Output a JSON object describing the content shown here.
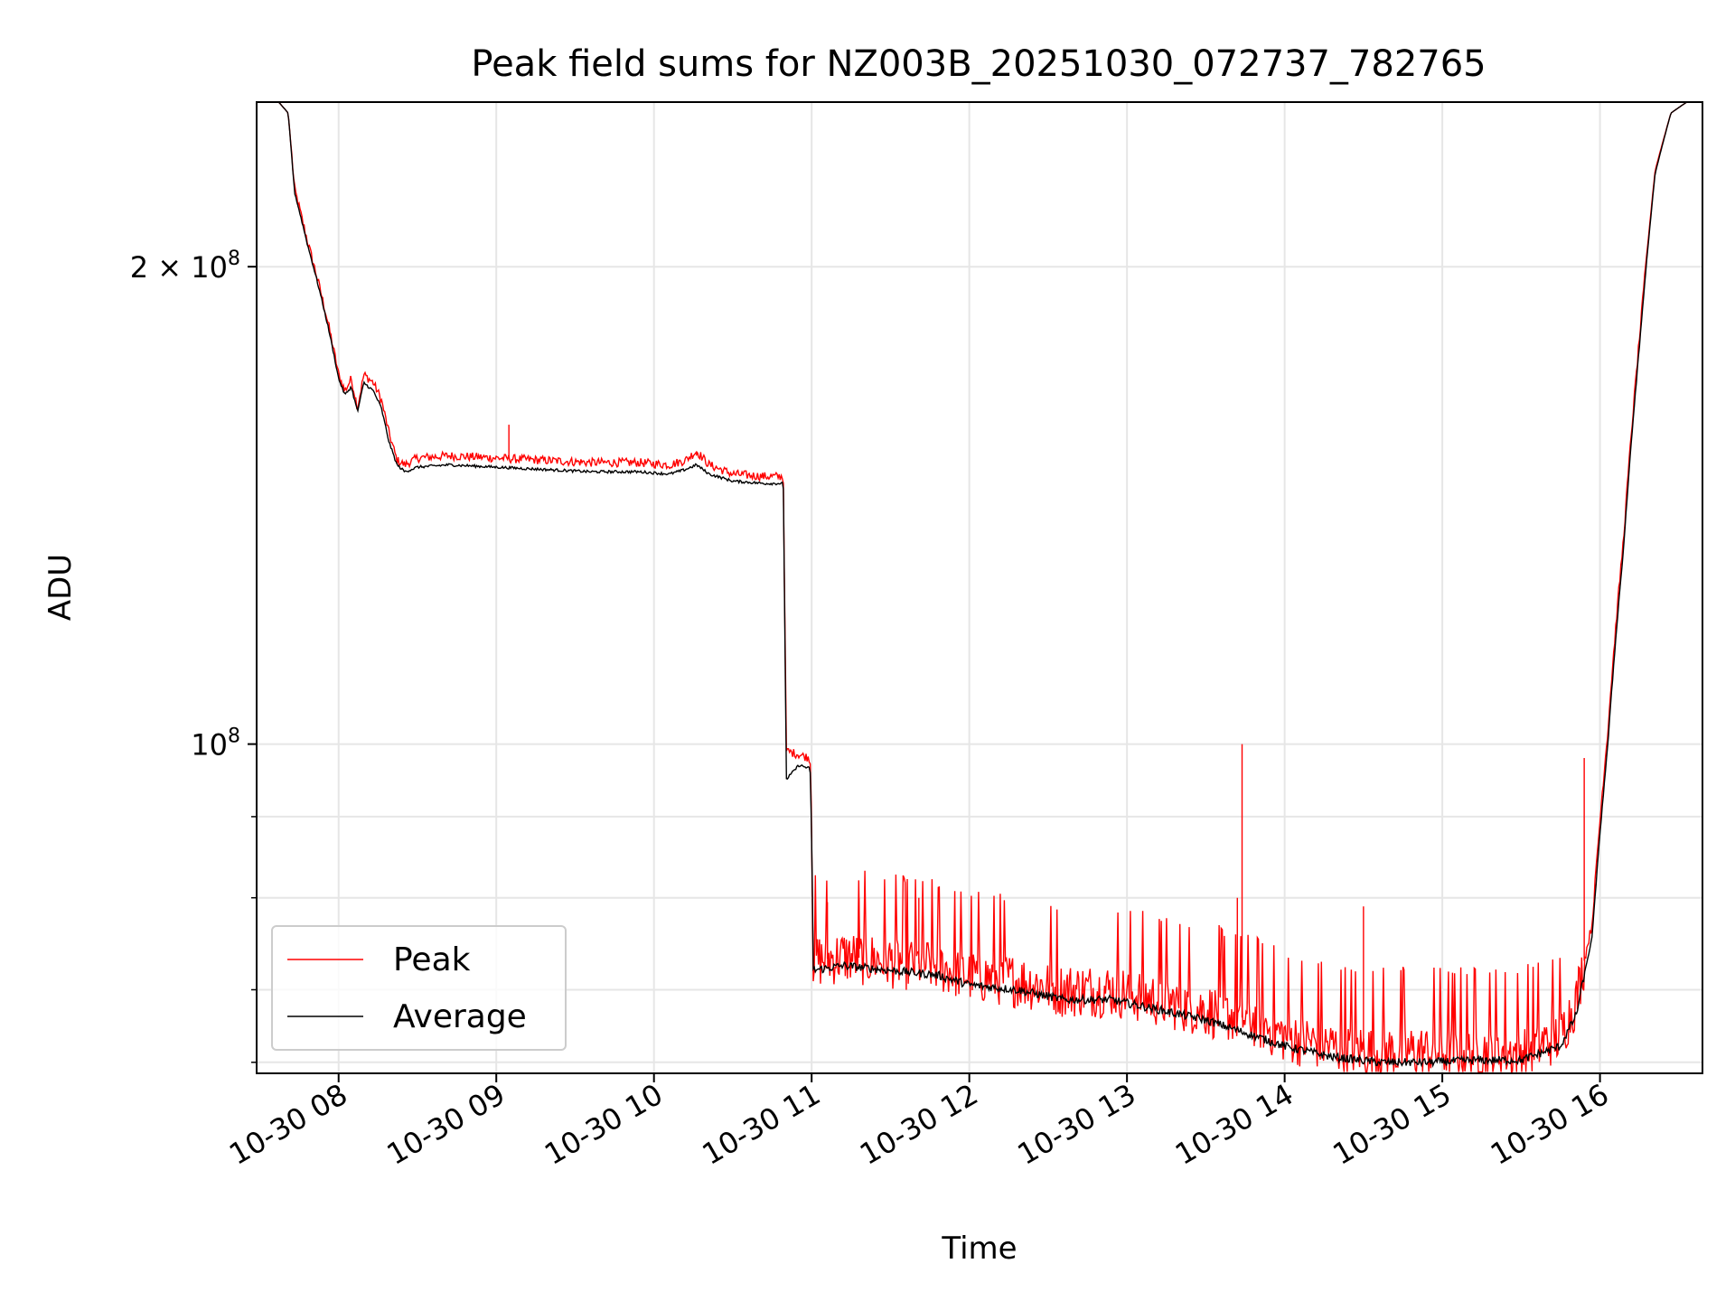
{
  "chart_data": {
    "type": "line",
    "title": "Peak field sums for NZ003B_20251030_072737_782765",
    "xlabel": "Time",
    "ylabel": "ADU",
    "yscale": "log",
    "grid": true,
    "legend_position": "lower-left",
    "x_unit": "hours since 10-30 00:00",
    "xlim": [
      7.48,
      16.65
    ],
    "ylim": [
      62000000,
      254000000
    ],
    "xticks": [
      {
        "value": 8,
        "label": "10-30 08"
      },
      {
        "value": 9,
        "label": "10-30 09"
      },
      {
        "value": 10,
        "label": "10-30 10"
      },
      {
        "value": 11,
        "label": "10-30 11"
      },
      {
        "value": 12,
        "label": "10-30 12"
      },
      {
        "value": 13,
        "label": "10-30 13"
      },
      {
        "value": 14,
        "label": "10-30 14"
      },
      {
        "value": 15,
        "label": "10-30 15"
      },
      {
        "value": 16,
        "label": "10-30 16"
      }
    ],
    "yticks_major": [
      {
        "value": 100000000,
        "base": "10",
        "exp": "8"
      },
      {
        "value": 200000000,
        "base": "2 × 10",
        "exp": "8"
      }
    ],
    "yticks_minor": [
      63000000,
      70000000,
      80000000,
      90000000
    ],
    "colors": {
      "peak": "#ff0000",
      "average": "#000000",
      "grid": "#e6e6e6"
    },
    "series": [
      {
        "name": "Peak",
        "color": "#ff0000",
        "spike_points": [
          [
            9.08,
            159000000
          ],
          [
            10.27,
            152000000
          ],
          [
            13.73,
            100000000
          ],
          [
            13.7,
            80000000
          ],
          [
            14.5,
            79000000
          ],
          [
            15.9,
            98000000
          ],
          [
            11.3,
            80000000
          ],
          [
            11.68,
            80000000
          ],
          [
            11.1,
            79500000
          ]
        ],
        "x": [
          7.48,
          7.62,
          7.68,
          7.72,
          7.8,
          7.88,
          7.94,
          8.0,
          8.04,
          8.08,
          8.12,
          8.16,
          8.22,
          8.27,
          8.32,
          8.37,
          8.42,
          8.5,
          8.7,
          9.0,
          9.3,
          9.6,
          9.9,
          10.1,
          10.2,
          10.27,
          10.35,
          10.5,
          10.7,
          10.82,
          10.83,
          10.84,
          10.92,
          10.99,
          11.0,
          11.01,
          11.2,
          11.5,
          11.8,
          12.0,
          12.3,
          12.6,
          12.9,
          13.2,
          13.5,
          13.8,
          14.0,
          14.3,
          14.6,
          14.9,
          15.2,
          15.5,
          15.75,
          15.85,
          15.95,
          16.05,
          16.15,
          16.25,
          16.35,
          16.45,
          16.55,
          16.65
        ],
        "y": [
          254000000,
          254000000,
          250000000,
          224000000,
          208000000,
          194000000,
          183000000,
          171000000,
          167000000,
          170000000,
          163000000,
          171000000,
          169000000,
          165000000,
          157000000,
          151000000,
          150000000,
          151500000,
          152000000,
          151500000,
          151000000,
          150500000,
          150500000,
          150000000,
          151000000,
          153000000,
          150000000,
          148000000,
          147500000,
          147500000,
          120000000,
          99000000,
          98500000,
          98000000,
          90000000,
          73000000,
          73500000,
          73000000,
          72500000,
          71500000,
          71000000,
          70000000,
          70000000,
          69000000,
          68000000,
          67000000,
          65500000,
          64500000,
          64000000,
          64000000,
          64000000,
          64000000,
          65500000,
          69000000,
          77000000,
          102000000,
          135000000,
          180000000,
          230000000,
          250000000,
          254000000,
          254000000
        ]
      },
      {
        "name": "Average",
        "color": "#000000",
        "x": [
          7.48,
          7.62,
          7.68,
          7.72,
          7.8,
          7.88,
          7.94,
          8.0,
          8.04,
          8.08,
          8.12,
          8.16,
          8.22,
          8.27,
          8.32,
          8.37,
          8.42,
          8.5,
          8.7,
          9.0,
          9.3,
          9.6,
          9.9,
          10.1,
          10.2,
          10.27,
          10.35,
          10.5,
          10.7,
          10.82,
          10.83,
          10.84,
          10.92,
          10.99,
          11.0,
          11.01,
          11.2,
          11.5,
          11.8,
          12.0,
          12.3,
          12.6,
          12.9,
          13.2,
          13.5,
          13.8,
          14.0,
          14.3,
          14.6,
          14.9,
          15.2,
          15.5,
          15.75,
          15.85,
          15.95,
          16.05,
          16.15,
          16.25,
          16.35,
          16.45,
          16.55,
          16.65
        ],
        "y": [
          254000000,
          254000000,
          250000000,
          223000000,
          207000000,
          193000000,
          182000000,
          170000000,
          166000000,
          168000000,
          162000000,
          169000000,
          167000000,
          163000000,
          155000000,
          150000000,
          148500000,
          149500000,
          150000000,
          149500000,
          149000000,
          148500000,
          148500000,
          148000000,
          149000000,
          150000000,
          148000000,
          146500000,
          146000000,
          146000000,
          118000000,
          95000000,
          97000000,
          96500000,
          88000000,
          72000000,
          72500000,
          72000000,
          71500000,
          70500000,
          70000000,
          69000000,
          69000000,
          68000000,
          67000000,
          65500000,
          64500000,
          63500000,
          63000000,
          63000000,
          63200000,
          63200000,
          64500000,
          67500000,
          75500000,
          100000000,
          133000000,
          178000000,
          229000000,
          250000000,
          254000000,
          254000000
        ]
      }
    ]
  }
}
